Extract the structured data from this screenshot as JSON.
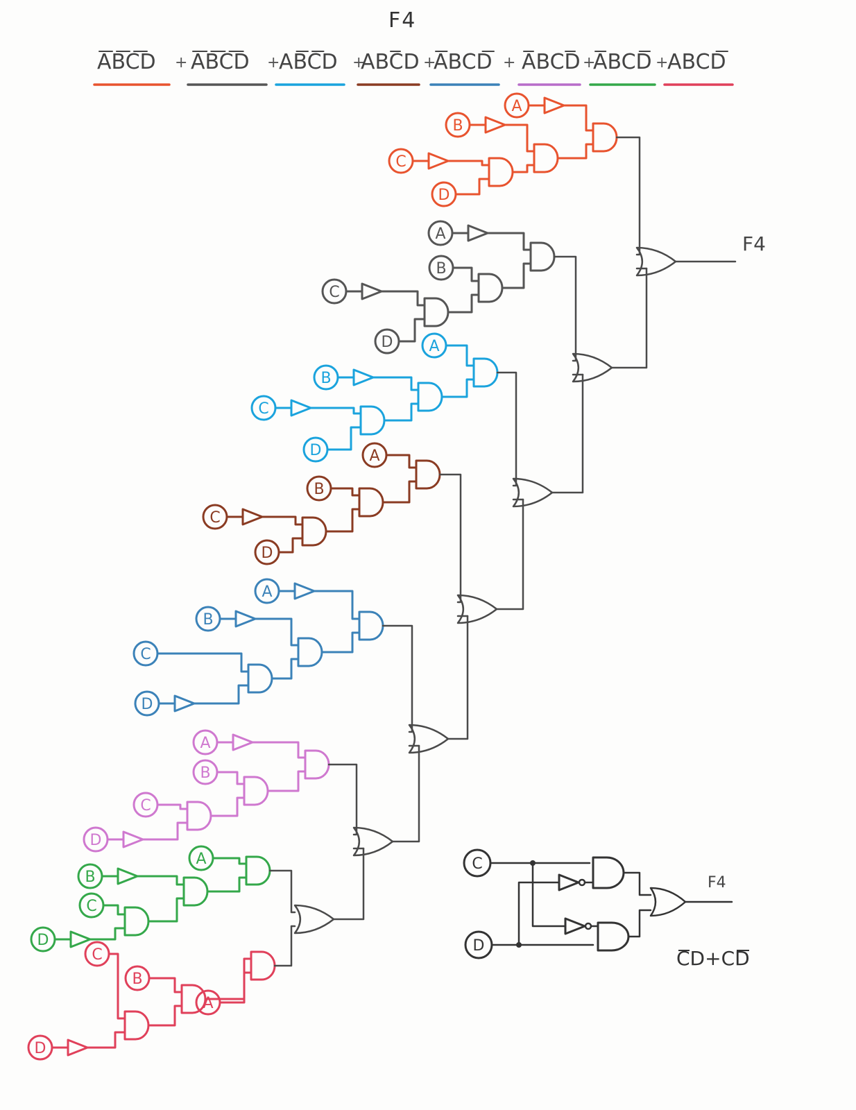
{
  "heading": "F4",
  "expression": {
    "terms": [
      {
        "text": "ABCD",
        "underline": "#e8532e"
      },
      {
        "text": "ABCD",
        "underline": "#555555"
      },
      {
        "text": "ABCD",
        "underline": "#1aa3dd"
      },
      {
        "text": "ABCD",
        "underline": "#8a3b22"
      },
      {
        "text": "ABCD",
        "underline": "#3b82b8"
      },
      {
        "text": "ABCD",
        "underline": "#b86cc9"
      },
      {
        "text": "ABCD",
        "underline": "#34a84a"
      },
      {
        "text": "ABCD",
        "underline": "#e0405a"
      }
    ],
    "plus": "+"
  },
  "input_labels": {
    "a": "A",
    "b": "B",
    "c": "C",
    "d": "D"
  },
  "output_label": "F4",
  "mini_output_label": "F4",
  "simplified": "CD+CD",
  "colors": {
    "orange": "#e8532e",
    "gray": "#555555",
    "cyan": "#1aa3dd",
    "brown": "#8a3b22",
    "steel": "#3b82b8",
    "violet": "#cf78cf",
    "green": "#34a84a",
    "red": "#e0405a",
    "pencil": "#4a4a4a"
  }
}
